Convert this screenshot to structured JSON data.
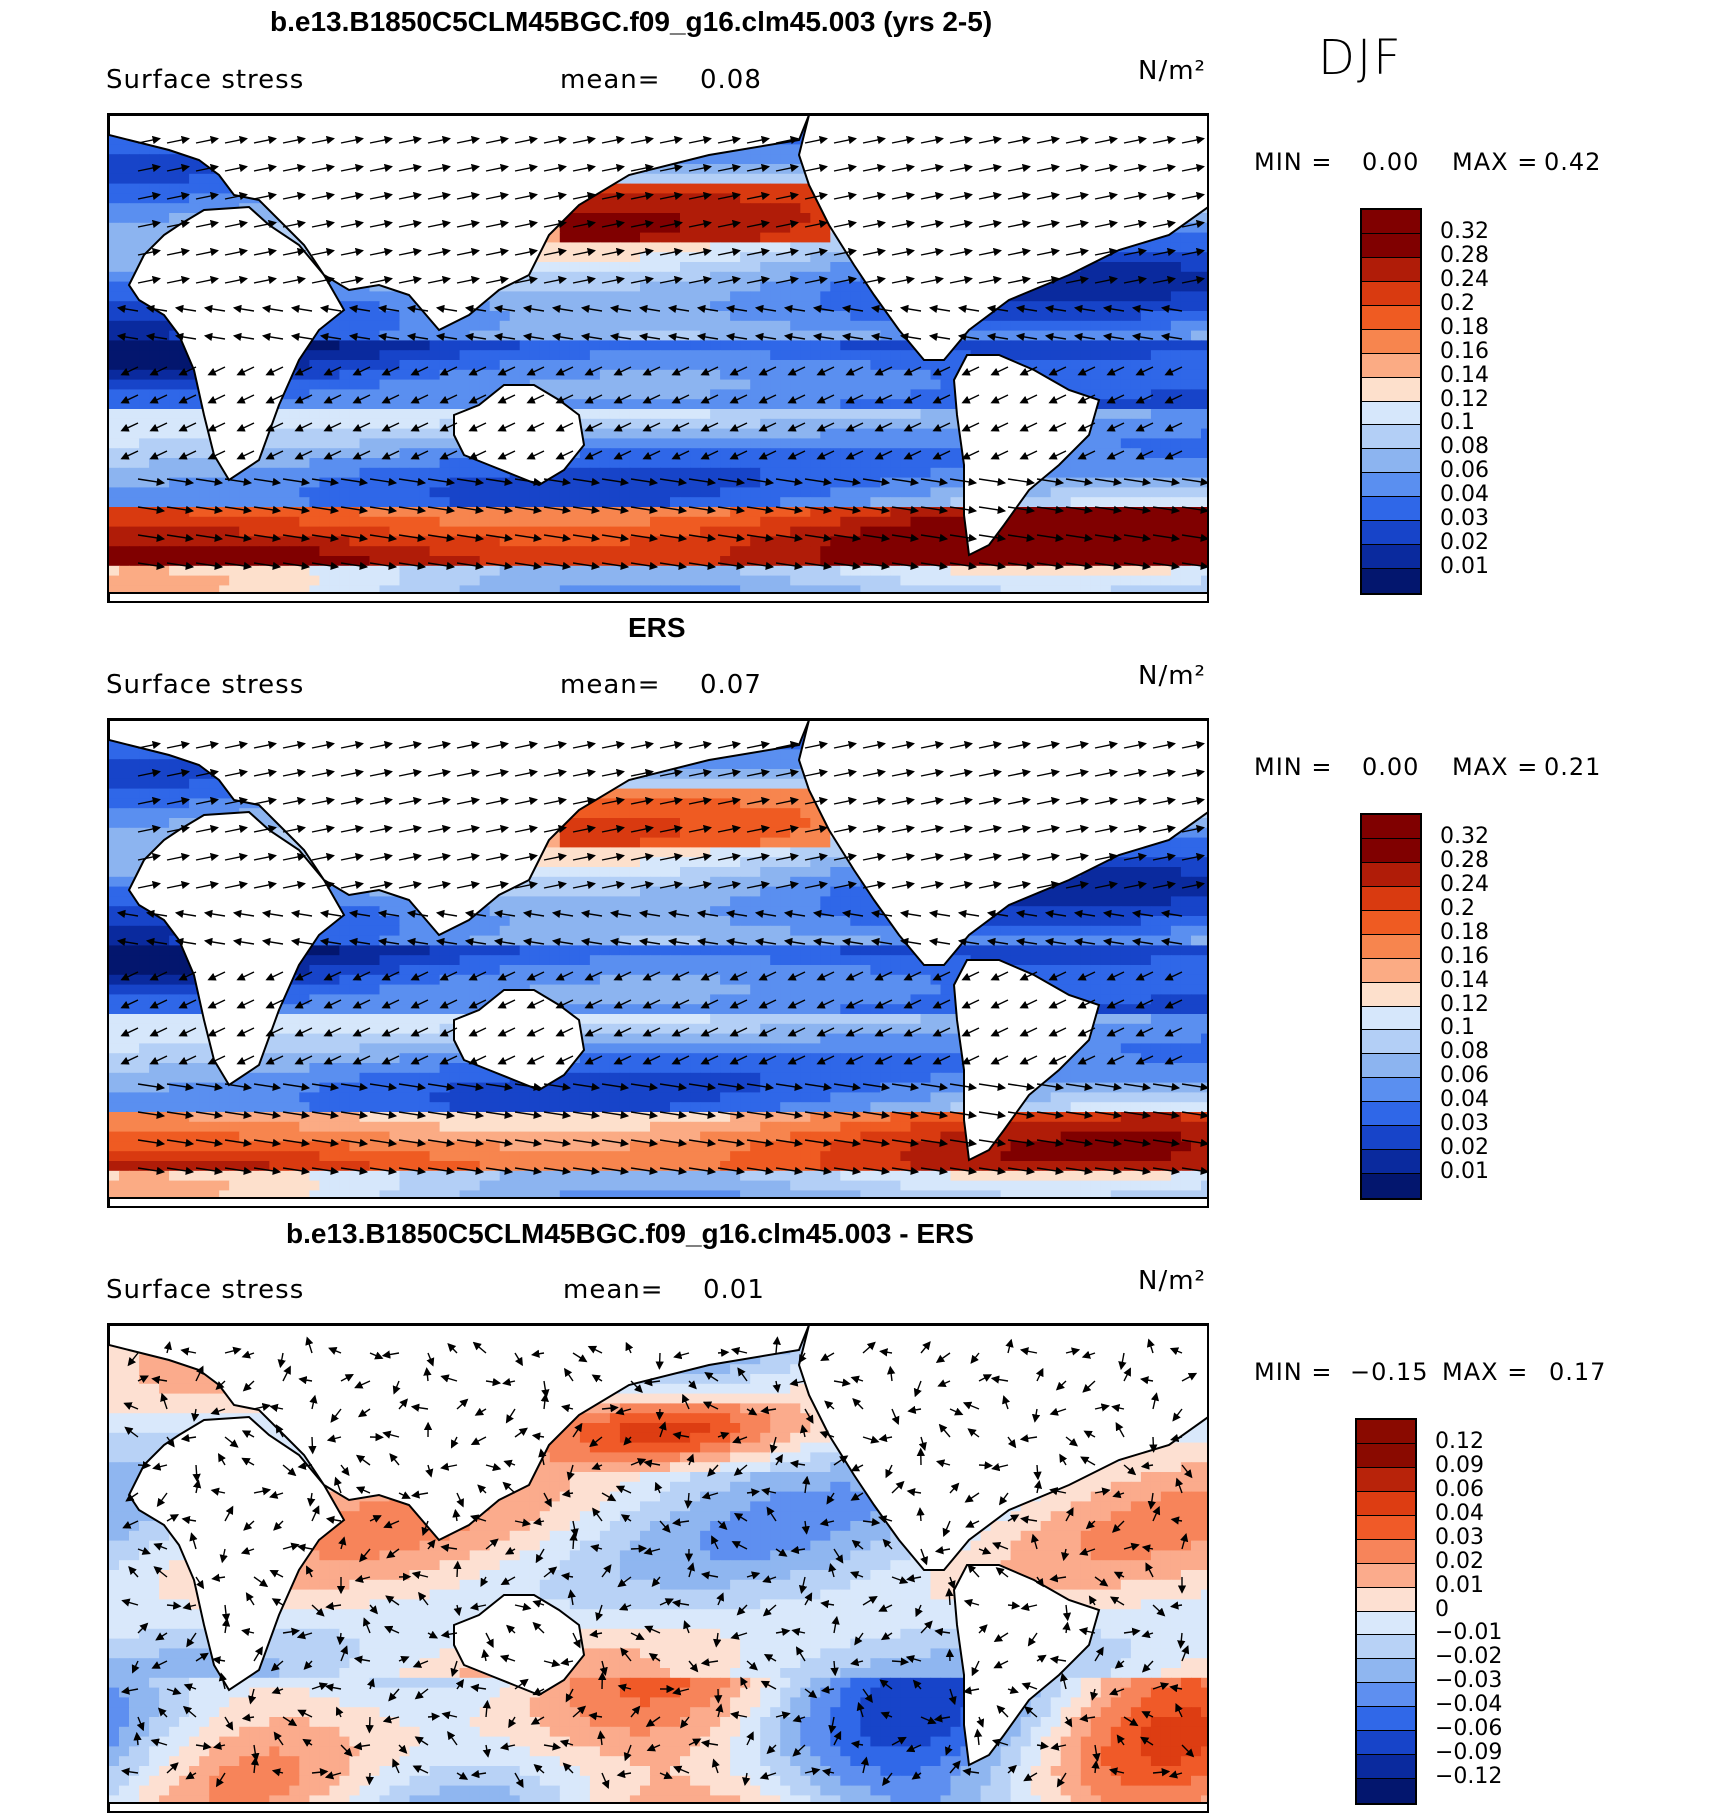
{
  "season": "DJF",
  "panels": [
    {
      "title": "b.e13.B1850C5CLM45BGC.f09_g16.clm45.003 (yrs 2-5)",
      "variable": "Surface stress",
      "mean_label": "mean=",
      "mean_value": "0.08",
      "units": "N/m²",
      "min_label": "MIN =",
      "min_value": "0.00",
      "max_label": "MAX =",
      "max_value": "0.42",
      "colorbar_levels": [
        "0.32",
        "0.28",
        "0.24",
        "0.2",
        "0.18",
        "0.16",
        "0.14",
        "0.12",
        "0.1",
        "0.08",
        "0.06",
        "0.04",
        "0.03",
        "0.02",
        "0.01"
      ]
    },
    {
      "title": "ERS",
      "variable": "Surface stress",
      "mean_label": "mean=",
      "mean_value": "0.07",
      "units": "N/m²",
      "min_label": "MIN =",
      "min_value": "0.00",
      "max_label": "MAX =",
      "max_value": "0.21",
      "colorbar_levels": [
        "0.32",
        "0.28",
        "0.24",
        "0.2",
        "0.18",
        "0.16",
        "0.14",
        "0.12",
        "0.1",
        "0.08",
        "0.06",
        "0.04",
        "0.03",
        "0.02",
        "0.01"
      ]
    },
    {
      "title": "b.e13.B1850C5CLM45BGC.f09_g16.clm45.003 - ERS",
      "variable": "Surface stress",
      "mean_label": "mean=",
      "mean_value": "0.01",
      "units": "N/m²",
      "min_label": "MIN =",
      "min_value": "−0.15",
      "max_label": "MAX =",
      "max_value": "0.17",
      "colorbar_levels": [
        "0.12",
        "0.09",
        "0.06",
        "0.04",
        "0.03",
        "0.02",
        "0.01",
        "0",
        "−0.01",
        "−0.02",
        "−0.03",
        "−0.04",
        "−0.06",
        "−0.09",
        "−0.12"
      ]
    }
  ],
  "colors": {
    "seq": [
      "#800000",
      "#b01c08",
      "#d93a10",
      "#ef5b22",
      "#f7854e",
      "#fbab84",
      "#fde0cc",
      "#d6e7fb",
      "#b3cff6",
      "#8cb4f0",
      "#5a8ff0",
      "#2f67e8",
      "#1744c9",
      "#0a2a9e",
      "#03166e"
    ],
    "div": [
      "#8a0a00",
      "#b8230a",
      "#dd3d12",
      "#f05a28",
      "#f7845a",
      "#fbab8c",
      "#fde0d2",
      "#d9e8fb",
      "#b8d2f6",
      "#8fb6f0",
      "#5e8ff0",
      "#3068e8",
      "#1744c9",
      "#0a2a9e",
      "#03166e"
    ],
    "land": "#ffffff",
    "coast": "#000000",
    "arrow": "#000000"
  }
}
